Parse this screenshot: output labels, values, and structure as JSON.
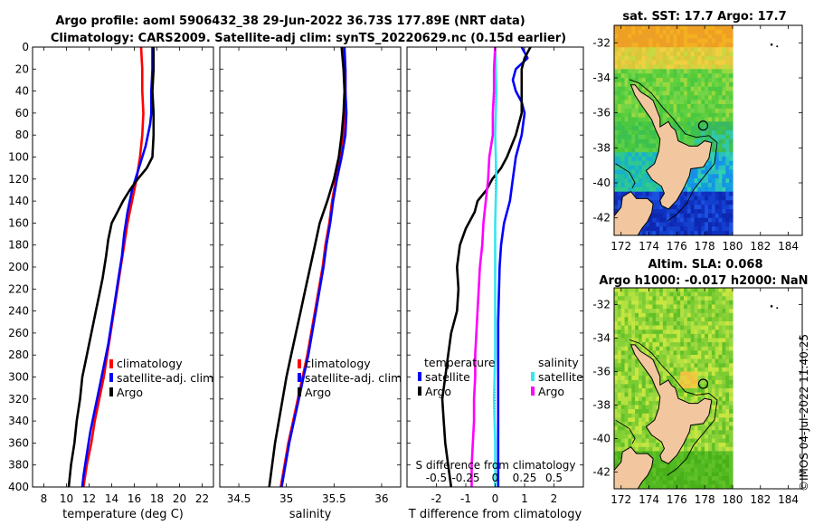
{
  "titles": {
    "line1": "Argo profile: aoml 5906432_38 29-Jun-2022 36.73S 177.89E (NRT data)",
    "line2": "Climatology: CARS2009. Satellite-adj clim: synTS_20220629.nc (0.15d earlier)",
    "sst": "sat. SST: 17.7 Argo: 17.7",
    "alt1": "Altim. SLA: 0.068",
    "alt2": "Argo h1000: -0.017 h2000: NaN"
  },
  "timestamp": "©IMOS 04-Jul-2022 11:40:25",
  "colors": {
    "climatology": "#ff0000",
    "satellite": "#0000ff",
    "argo": "#000000",
    "s_satellite": "#33e6f2",
    "s_argo": "#ff00ff",
    "land": "#f2c7a0"
  },
  "chart_data": [
    {
      "type": "line",
      "id": "temperature",
      "xlabel": "temperature (deg C)",
      "ylabel": "",
      "xlim": [
        7,
        23
      ],
      "ylim": [
        0,
        400
      ],
      "xticks": [
        "8",
        "10",
        "12",
        "14",
        "16",
        "18",
        "20",
        "22"
      ],
      "xtick_values": [
        8,
        10,
        12,
        14,
        16,
        18,
        20,
        22
      ],
      "yticks": [
        "0",
        "20",
        "40",
        "60",
        "80",
        "100",
        "120",
        "140",
        "160",
        "180",
        "200",
        "220",
        "240",
        "260",
        "280",
        "300",
        "320",
        "340",
        "360",
        "380",
        "400"
      ],
      "ytick_values": [
        0,
        20,
        40,
        60,
        80,
        100,
        120,
        140,
        160,
        180,
        200,
        220,
        240,
        260,
        280,
        300,
        320,
        340,
        360,
        380,
        400
      ],
      "legend": [
        "climatology",
        "satellite-adj. clim",
        "Argo"
      ],
      "series": [
        {
          "name": "climatology",
          "color": "#ff0000",
          "points": [
            [
              16.6,
              0
            ],
            [
              16.7,
              20
            ],
            [
              16.7,
              40
            ],
            [
              16.8,
              60
            ],
            [
              16.7,
              80
            ],
            [
              16.5,
              100
            ],
            [
              16.2,
              120
            ],
            [
              15.8,
              140
            ],
            [
              15.4,
              160
            ],
            [
              15.1,
              180
            ],
            [
              14.8,
              200
            ],
            [
              14.5,
              220
            ],
            [
              14.2,
              240
            ],
            [
              13.9,
              260
            ],
            [
              13.6,
              280
            ],
            [
              13.3,
              300
            ],
            [
              12.9,
              320
            ],
            [
              12.5,
              340
            ],
            [
              12.2,
              360
            ],
            [
              11.8,
              380
            ],
            [
              11.5,
              400
            ]
          ]
        },
        {
          "name": "satellite-adj. clim",
          "color": "#0000ff",
          "points": [
            [
              17.6,
              0
            ],
            [
              17.6,
              20
            ],
            [
              17.5,
              40
            ],
            [
              17.5,
              60
            ],
            [
              17.4,
              70
            ],
            [
              17.0,
              90
            ],
            [
              16.4,
              110
            ],
            [
              15.8,
              130
            ],
            [
              15.4,
              150
            ],
            [
              15.1,
              170
            ],
            [
              14.9,
              190
            ],
            [
              14.6,
              210
            ],
            [
              14.3,
              230
            ],
            [
              14.0,
              250
            ],
            [
              13.7,
              270
            ],
            [
              13.3,
              290
            ],
            [
              12.9,
              310
            ],
            [
              12.5,
              330
            ],
            [
              12.1,
              350
            ],
            [
              11.8,
              370
            ],
            [
              11.5,
              390
            ],
            [
              11.4,
              400
            ]
          ]
        },
        {
          "name": "Argo",
          "color": "#000000",
          "points": [
            [
              17.7,
              0
            ],
            [
              17.7,
              20
            ],
            [
              17.6,
              40
            ],
            [
              17.7,
              60
            ],
            [
              17.7,
              80
            ],
            [
              17.6,
              100
            ],
            [
              17.1,
              110
            ],
            [
              16.3,
              120
            ],
            [
              15.6,
              130
            ],
            [
              15.0,
              140
            ],
            [
              14.5,
              150
            ],
            [
              14.0,
              160
            ],
            [
              13.7,
              175
            ],
            [
              13.5,
              190
            ],
            [
              13.2,
              210
            ],
            [
              12.9,
              225
            ],
            [
              12.6,
              240
            ],
            [
              12.3,
              255
            ],
            [
              12.0,
              270
            ],
            [
              11.7,
              285
            ],
            [
              11.4,
              300
            ],
            [
              11.2,
              320
            ],
            [
              10.9,
              340
            ],
            [
              10.7,
              360
            ],
            [
              10.4,
              380
            ],
            [
              10.2,
              400
            ]
          ]
        }
      ]
    },
    {
      "type": "line",
      "id": "salinity",
      "xlabel": "salinity",
      "ylabel": "",
      "xlim": [
        34.3,
        36.2
      ],
      "ylim": [
        0,
        400
      ],
      "xticks": [
        "34.5",
        "35",
        "35.5",
        "36"
      ],
      "xtick_values": [
        34.5,
        35,
        35.5,
        36
      ],
      "legend": [
        "climatology",
        "satellite-adj. clim",
        "Argo"
      ],
      "series": [
        {
          "name": "climatology",
          "color": "#ff0000",
          "points": [
            [
              35.6,
              0
            ],
            [
              35.62,
              20
            ],
            [
              35.62,
              40
            ],
            [
              35.62,
              60
            ],
            [
              35.6,
              80
            ],
            [
              35.56,
              100
            ],
            [
              35.52,
              120
            ],
            [
              35.48,
              140
            ],
            [
              35.45,
              160
            ],
            [
              35.41,
              180
            ],
            [
              35.38,
              200
            ],
            [
              35.34,
              220
            ],
            [
              35.3,
              240
            ],
            [
              35.26,
              260
            ],
            [
              35.22,
              280
            ],
            [
              35.17,
              300
            ],
            [
              35.12,
              320
            ],
            [
              35.07,
              340
            ],
            [
              35.02,
              360
            ],
            [
              34.98,
              380
            ],
            [
              34.94,
              400
            ]
          ]
        },
        {
          "name": "satellite-adj. clim",
          "color": "#0000ff",
          "points": [
            [
              35.61,
              0
            ],
            [
              35.62,
              20
            ],
            [
              35.62,
              40
            ],
            [
              35.63,
              60
            ],
            [
              35.62,
              80
            ],
            [
              35.58,
              100
            ],
            [
              35.53,
              120
            ],
            [
              35.49,
              140
            ],
            [
              35.46,
              160
            ],
            [
              35.42,
              180
            ],
            [
              35.39,
              200
            ],
            [
              35.35,
              220
            ],
            [
              35.31,
              240
            ],
            [
              35.27,
              260
            ],
            [
              35.23,
              280
            ],
            [
              35.18,
              300
            ],
            [
              35.13,
              320
            ],
            [
              35.08,
              340
            ],
            [
              35.03,
              360
            ],
            [
              34.99,
              380
            ],
            [
              34.95,
              400
            ]
          ]
        },
        {
          "name": "Argo",
          "color": "#000000",
          "points": [
            [
              35.58,
              0
            ],
            [
              35.6,
              20
            ],
            [
              35.61,
              40
            ],
            [
              35.6,
              60
            ],
            [
              35.58,
              80
            ],
            [
              35.55,
              100
            ],
            [
              35.5,
              120
            ],
            [
              35.43,
              140
            ],
            [
              35.35,
              160
            ],
            [
              35.3,
              180
            ],
            [
              35.25,
              200
            ],
            [
              35.2,
              220
            ],
            [
              35.15,
              240
            ],
            [
              35.1,
              260
            ],
            [
              35.05,
              280
            ],
            [
              35.0,
              300
            ],
            [
              34.96,
              320
            ],
            [
              34.92,
              340
            ],
            [
              34.88,
              360
            ],
            [
              34.85,
              380
            ],
            [
              34.82,
              400
            ]
          ]
        }
      ]
    },
    {
      "type": "line",
      "id": "difference",
      "xlabel": "T difference from climatology",
      "xlabel_top": "S difference from climatology",
      "xlim": [
        -3,
        3
      ],
      "ylim": [
        0,
        400
      ],
      "xticks": [
        "-2",
        "-1",
        "0",
        "1",
        "2"
      ],
      "xtick_values": [
        -2,
        -1,
        0,
        1,
        2
      ],
      "xticks_s": [
        "-0.5",
        "-0.25",
        "0",
        "0.25",
        "0.5"
      ],
      "xtick_values_s": [
        -0.5,
        -0.25,
        0,
        0.25,
        0.5
      ],
      "legend_left_title": "temperature",
      "legend_right_title": "salinity",
      "legend_left": [
        "satellite",
        "Argo"
      ],
      "legend_right": [
        "satellite",
        "Argo"
      ],
      "series": [
        {
          "name": "T satellite",
          "color": "#0000ff",
          "points": [
            [
              0.9,
              0
            ],
            [
              1.1,
              10
            ],
            [
              0.7,
              20
            ],
            [
              0.6,
              30
            ],
            [
              0.7,
              40
            ],
            [
              0.9,
              50
            ],
            [
              1.0,
              60
            ],
            [
              0.9,
              80
            ],
            [
              0.7,
              100
            ],
            [
              0.6,
              120
            ],
            [
              0.5,
              140
            ],
            [
              0.3,
              160
            ],
            [
              0.2,
              180
            ],
            [
              0.15,
              200
            ],
            [
              0.1,
              250
            ],
            [
              0.1,
              300
            ],
            [
              0.1,
              350
            ],
            [
              0.1,
              400
            ]
          ]
        },
        {
          "name": "T Argo",
          "color": "#000000",
          "points": [
            [
              1.2,
              0
            ],
            [
              1.0,
              10
            ],
            [
              0.9,
              20
            ],
            [
              0.9,
              40
            ],
            [
              0.9,
              60
            ],
            [
              0.7,
              80
            ],
            [
              0.4,
              100
            ],
            [
              0.2,
              110
            ],
            [
              -0.1,
              120
            ],
            [
              -0.3,
              130
            ],
            [
              -0.6,
              140
            ],
            [
              -0.7,
              150
            ],
            [
              -1.0,
              165
            ],
            [
              -1.2,
              180
            ],
            [
              -1.3,
              200
            ],
            [
              -1.25,
              220
            ],
            [
              -1.3,
              240
            ],
            [
              -1.5,
              260
            ],
            [
              -1.6,
              280
            ],
            [
              -1.7,
              300
            ],
            [
              -1.8,
              320
            ],
            [
              -1.75,
              340
            ],
            [
              -1.7,
              360
            ],
            [
              -1.6,
              380
            ],
            [
              -1.5,
              400
            ]
          ]
        },
        {
          "name": "S satellite",
          "color": "#33e6f2",
          "points": [
            [
              0.0,
              0
            ],
            [
              0.01,
              40
            ],
            [
              0.0,
              80
            ],
            [
              0.01,
              120
            ],
            [
              0.0,
              160
            ],
            [
              0.0,
              200
            ],
            [
              0.0,
              240
            ],
            [
              0.0,
              280
            ],
            [
              -0.01,
              320
            ],
            [
              0.0,
              360
            ],
            [
              0.0,
              400
            ]
          ]
        },
        {
          "name": "S Argo",
          "color": "#ff00ff",
          "points": [
            [
              0.0,
              0
            ],
            [
              -0.01,
              20
            ],
            [
              -0.01,
              40
            ],
            [
              -0.02,
              60
            ],
            [
              -0.02,
              80
            ],
            [
              -0.05,
              100
            ],
            [
              -0.06,
              120
            ],
            [
              -0.08,
              140
            ],
            [
              -0.1,
              160
            ],
            [
              -0.11,
              180
            ],
            [
              -0.13,
              200
            ],
            [
              -0.14,
              220
            ],
            [
              -0.15,
              240
            ],
            [
              -0.16,
              260
            ],
            [
              -0.17,
              280
            ],
            [
              -0.17,
              300
            ],
            [
              -0.18,
              320
            ],
            [
              -0.18,
              340
            ],
            [
              -0.19,
              360
            ],
            [
              -0.2,
              380
            ],
            [
              -0.2,
              400
            ]
          ]
        }
      ]
    },
    {
      "type": "heatmap",
      "id": "sst_map",
      "title": "sat. SST: 17.7 Argo: 17.7",
      "xlim": [
        171.5,
        185
      ],
      "ylim": [
        -43,
        -31
      ],
      "xticks": [
        "172",
        "174",
        "176",
        "178",
        "180",
        "182",
        "184"
      ],
      "xtick_values": [
        172,
        174,
        176,
        178,
        180,
        182,
        184
      ],
      "yticks": [
        "-32",
        "-34",
        "-36",
        "-38",
        "-40",
        "-42"
      ],
      "ytick_values": [
        -32,
        -34,
        -36,
        -38,
        -40,
        -42
      ],
      "data_extent_lon": [
        171.5,
        180
      ],
      "argo_position": [
        177.89,
        -36.73
      ]
    },
    {
      "type": "heatmap",
      "id": "sla_map",
      "title": "Altim. SLA: 0.068",
      "xlim": [
        171.5,
        185
      ],
      "ylim": [
        -43,
        -31
      ],
      "xticks": [
        "172",
        "174",
        "176",
        "178",
        "180",
        "182",
        "184"
      ],
      "xtick_values": [
        172,
        174,
        176,
        178,
        180,
        182,
        184
      ],
      "yticks": [
        "-32",
        "-34",
        "-36",
        "-38",
        "-40",
        "-42"
      ],
      "ytick_values": [
        -32,
        -34,
        -36,
        -38,
        -40,
        -42
      ],
      "data_extent_lon": [
        171.5,
        180
      ],
      "argo_position": [
        177.89,
        -36.73
      ]
    }
  ]
}
